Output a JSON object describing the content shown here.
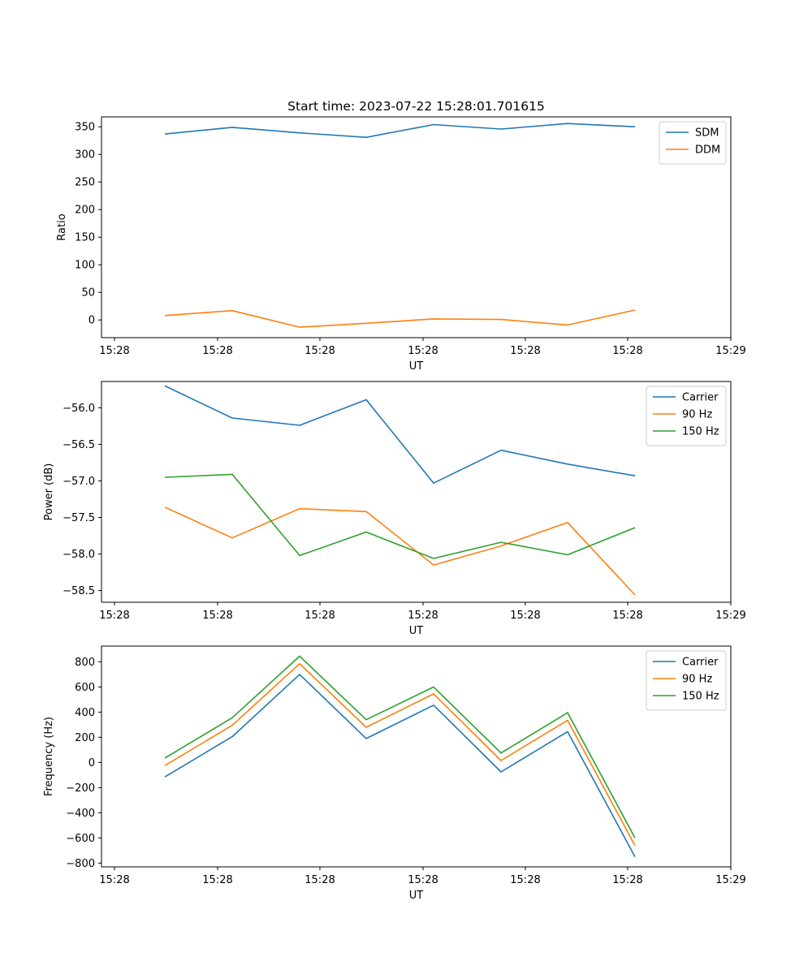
{
  "chart_data": [
    {
      "type": "line",
      "title": "Start time: 2023-07-22 15:28:01.701615",
      "xlabel": "UT",
      "ylabel": "Ratio",
      "xtick_labels": [
        "15:28",
        "15:28",
        "15:28",
        "15:28",
        "15:28",
        "15:28",
        "15:28"
      ],
      "xtick_last_label": "15:29",
      "yticks": [
        0,
        50,
        100,
        150,
        200,
        250,
        300,
        350
      ],
      "ylim": [
        -32,
        368
      ],
      "legend": "top-right",
      "colors": [
        "#1f77b4",
        "#ff7f0e"
      ],
      "series": [
        {
          "name": "SDM",
          "values": [
            337,
            349,
            339,
            331,
            354,
            346,
            356,
            350
          ]
        },
        {
          "name": "DDM",
          "values": [
            8,
            17,
            -13,
            -6,
            2,
            1,
            -9,
            18
          ]
        }
      ]
    },
    {
      "type": "line",
      "title": "",
      "xlabel": "UT",
      "ylabel": "Power (dB)",
      "xtick_labels": [
        "15:28",
        "15:28",
        "15:28",
        "15:28",
        "15:28",
        "15:28",
        "15:28"
      ],
      "xtick_last_label": "15:29",
      "yticks": [
        -56.0,
        -56.5,
        -57.0,
        -57.5,
        -58.0,
        -58.5
      ],
      "ytick_labels": [
        "−56.0",
        "−56.5",
        "−57.0",
        "−57.5",
        "−58.0",
        "−58.5"
      ],
      "ylim": [
        -58.66,
        -55.64
      ],
      "legend": "top-right",
      "colors": [
        "#1f77b4",
        "#ff7f0e",
        "#2ca02c"
      ],
      "series": [
        {
          "name": "Carrier",
          "values": [
            -55.7,
            -56.14,
            -56.24,
            -55.89,
            -57.03,
            -56.58,
            -56.77,
            -56.93
          ]
        },
        {
          "name": "90 Hz",
          "values": [
            -57.36,
            -57.78,
            -57.38,
            -57.42,
            -58.15,
            -57.89,
            -57.57,
            -58.56
          ]
        },
        {
          "name": "150 Hz",
          "values": [
            -56.95,
            -56.91,
            -58.02,
            -57.7,
            -58.06,
            -57.84,
            -58.01,
            -57.64
          ]
        }
      ]
    },
    {
      "type": "line",
      "title": "",
      "xlabel": "UT",
      "ylabel": "Frequency (Hz)",
      "xtick_labels": [
        "15:28",
        "15:28",
        "15:28",
        "15:28",
        "15:28",
        "15:28",
        "15:28"
      ],
      "xtick_last_label": "15:29",
      "yticks": [
        800,
        600,
        400,
        200,
        0,
        -200,
        -400,
        -600,
        -800
      ],
      "ytick_labels": [
        "800",
        "600",
        "400",
        "200",
        "0",
        "−200",
        "−400",
        "−600",
        "−800"
      ],
      "ylim": [
        -830,
        925
      ],
      "legend": "top-right",
      "colors": [
        "#1f77b4",
        "#ff7f0e",
        "#2ca02c"
      ],
      "series": [
        {
          "name": "Carrier",
          "values": [
            -115,
            205,
            700,
            190,
            455,
            -75,
            245,
            -750
          ]
        },
        {
          "name": "90 Hz",
          "values": [
            -25,
            295,
            785,
            280,
            545,
            15,
            335,
            -660
          ]
        },
        {
          "name": "150 Hz",
          "values": [
            35,
            355,
            845,
            340,
            600,
            75,
            395,
            -600
          ]
        }
      ]
    }
  ]
}
